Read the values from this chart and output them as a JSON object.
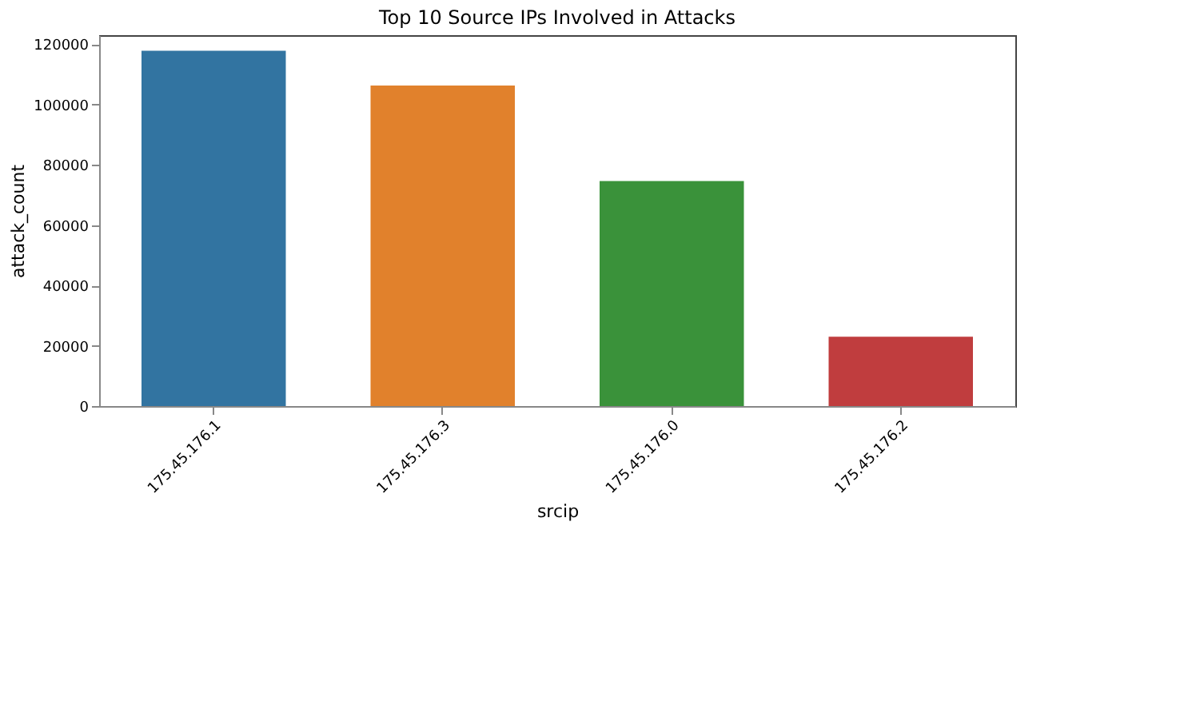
{
  "chart_data": {
    "type": "bar",
    "title": "Top 10 Source IPs Involved in Attacks",
    "xlabel": "srcip",
    "ylabel": "attack_count",
    "categories": [
      "175.45.176.1",
      "175.45.176.3",
      "175.45.176.0",
      "175.45.176.2"
    ],
    "values": [
      117800,
      106300,
      74600,
      23000
    ],
    "colors": [
      "#3274a1",
      "#e1812c",
      "#3a923a",
      "#c03d3e"
    ],
    "ylim": [
      0,
      123000
    ],
    "yticks": [
      0,
      20000,
      40000,
      60000,
      80000,
      100000,
      120000
    ],
    "grid": false
  }
}
